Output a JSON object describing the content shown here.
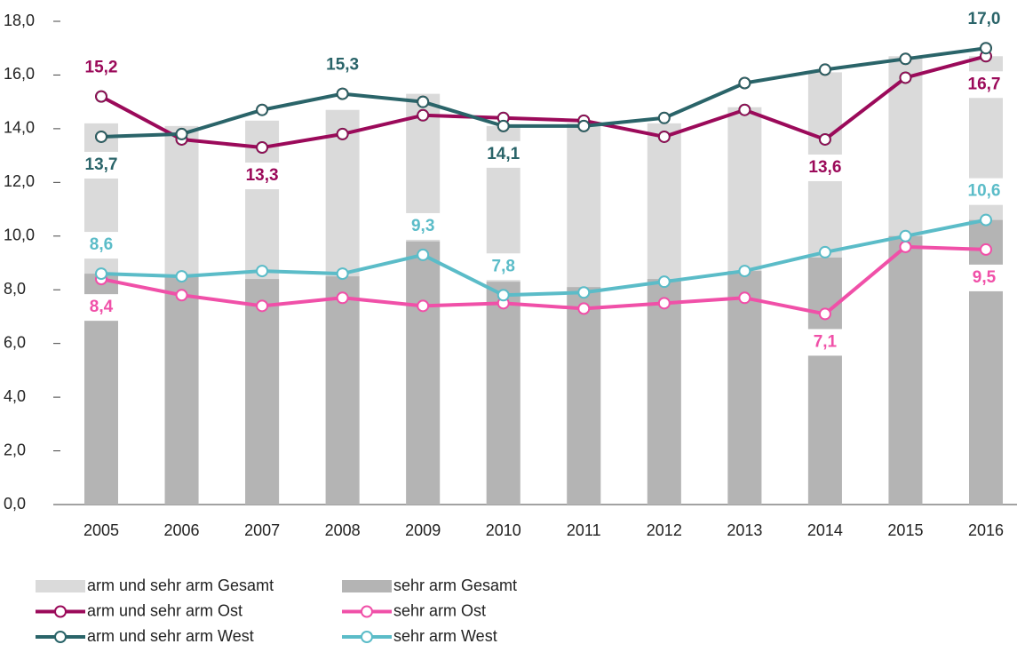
{
  "chart_data": {
    "type": "combo",
    "categories": [
      "2005",
      "2006",
      "2007",
      "2008",
      "2009",
      "2010",
      "2011",
      "2012",
      "2013",
      "2014",
      "2015",
      "2016"
    ],
    "ylim": [
      0,
      18
    ],
    "yticks": [
      {
        "value": 0,
        "label": "0,0"
      },
      {
        "value": 2,
        "label": "2,0"
      },
      {
        "value": 4,
        "label": "4,0"
      },
      {
        "value": 6,
        "label": "6,0"
      },
      {
        "value": 8,
        "label": "8,0"
      },
      {
        "value": 10,
        "label": "10,0"
      },
      {
        "value": 12,
        "label": "12,0"
      },
      {
        "value": 14,
        "label": "14,0"
      },
      {
        "value": 16,
        "label": "16,0"
      },
      {
        "value": 18,
        "label": "18,0"
      }
    ],
    "grid": false,
    "series": [
      {
        "name": "arm und sehr arm Gesamt",
        "type": "bar",
        "color": "#dadada",
        "values": [
          14.2,
          14.1,
          14.3,
          14.7,
          15.3,
          14.1,
          14.2,
          14.2,
          14.8,
          16.1,
          16.7,
          16.7
        ]
      },
      {
        "name": "sehr arm Gesamt",
        "type": "bar",
        "color": "#b4b4b4",
        "values": [
          8.6,
          8.5,
          8.4,
          8.5,
          9.8,
          8.3,
          8.1,
          8.4,
          8.7,
          9.2,
          10.0,
          10.6
        ]
      },
      {
        "name": "arm und sehr arm Ost",
        "type": "line",
        "color": "#9b0a5a",
        "values": [
          15.2,
          13.6,
          13.3,
          13.8,
          14.5,
          14.4,
          14.3,
          13.7,
          14.7,
          13.6,
          15.9,
          16.7
        ],
        "value_labels": [
          "15,2",
          null,
          "13,3",
          null,
          null,
          null,
          null,
          null,
          null,
          "13,6",
          null,
          "16,7"
        ]
      },
      {
        "name": "sehr arm Ost",
        "type": "line",
        "color": "#f050a8",
        "values": [
          8.4,
          7.8,
          7.4,
          7.7,
          7.4,
          7.5,
          7.3,
          7.5,
          7.7,
          7.1,
          9.6,
          9.5
        ],
        "value_labels": [
          "8,4",
          null,
          null,
          null,
          null,
          null,
          null,
          null,
          null,
          "7,1",
          null,
          "9,5"
        ]
      },
      {
        "name": "arm und sehr arm West",
        "type": "line",
        "color": "#2a6469",
        "values": [
          13.7,
          13.8,
          14.7,
          15.3,
          15.0,
          14.1,
          14.1,
          14.4,
          15.7,
          16.2,
          16.6,
          17.0
        ],
        "value_labels": [
          "13,7",
          null,
          null,
          "15,3",
          null,
          "14,1",
          null,
          null,
          null,
          null,
          null,
          "17,0"
        ]
      },
      {
        "name": "sehr arm West",
        "type": "line",
        "color": "#5bbcc8",
        "values": [
          8.6,
          8.5,
          8.7,
          8.6,
          9.3,
          7.8,
          7.9,
          8.3,
          8.7,
          9.4,
          10.0,
          10.6
        ],
        "value_labels": [
          "8,6",
          null,
          null,
          null,
          "9,3",
          "7,8",
          null,
          null,
          null,
          null,
          null,
          "10,6"
        ]
      }
    ]
  }
}
